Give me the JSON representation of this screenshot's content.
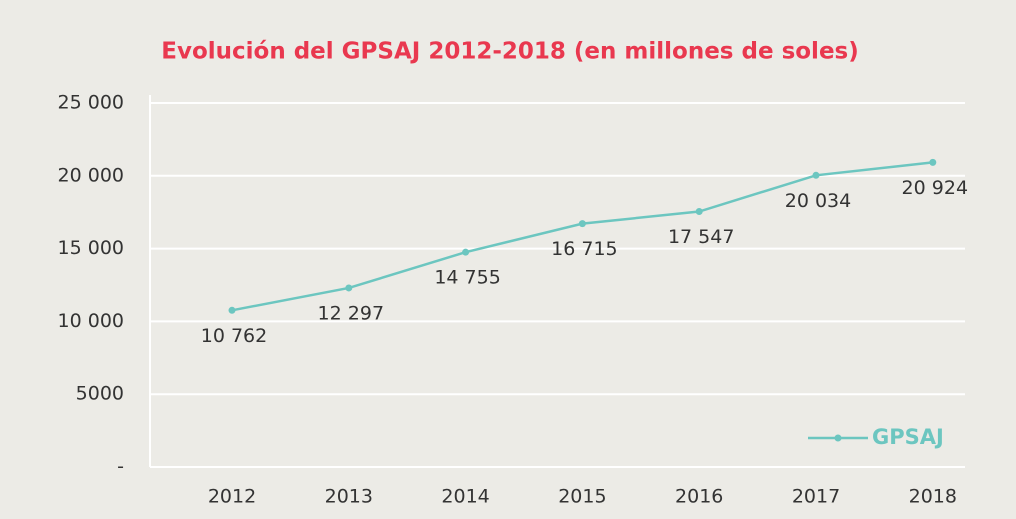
{
  "chart_data": {
    "type": "line",
    "title": "Evolución del GPSAJ 2012-2018 (en millones de soles)",
    "categories": [
      "2012",
      "2013",
      "2014",
      "2015",
      "2016",
      "2017",
      "2018"
    ],
    "series": [
      {
        "name": "GPSAJ",
        "color": "#6cc6c0",
        "values": [
          10762,
          12297,
          14755,
          16715,
          17547,
          20034,
          20924
        ],
        "value_labels": [
          "10 762",
          "12 297",
          "14 755",
          "16 715",
          "17 547",
          "20 034",
          "20 924"
        ]
      }
    ],
    "ylim": [
      0,
      25000
    ],
    "yticks": [
      {
        "value": 0,
        "label": "-"
      },
      5000,
      {
        "value": 10000,
        "label": "10 000"
      },
      {
        "value": 15000,
        "label": "15 000"
      },
      {
        "value": 20000,
        "label": "20 000"
      },
      {
        "value": 25000,
        "label": "25 000"
      }
    ],
    "grid": true,
    "legend": "lower right"
  }
}
